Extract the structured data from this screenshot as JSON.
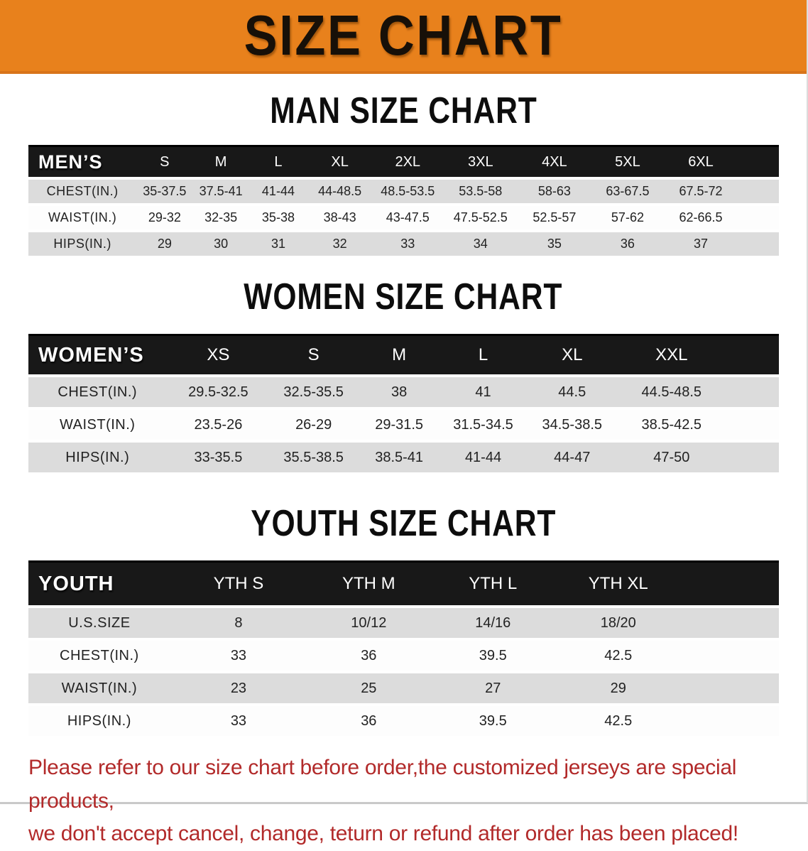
{
  "banner": {
    "title": "SIZE CHART"
  },
  "colors": {
    "banner_bg": "#E8811C",
    "banner_text": "#171008",
    "header_bar_bg": "#181818",
    "header_bar_text": "#FFFFFF",
    "row_alt_bg": "#DCDCDC",
    "disclaimer_red": "#B22A2A"
  },
  "sections": [
    {
      "heading": "MAN SIZE CHART",
      "table": {
        "label": "MEN’S",
        "columns": [
          "S",
          "M",
          "L",
          "XL",
          "2XL",
          "3XL",
          "4XL",
          "5XL",
          "6XL"
        ],
        "rows": [
          {
            "label": "CHEST(IN.)",
            "values": [
              "35-37.5",
              "37.5-41",
              "41-44",
              "44-48.5",
              "48.5-53.5",
              "53.5-58",
              "58-63",
              "63-67.5",
              "67.5-72"
            ]
          },
          {
            "label": "WAIST(IN.)",
            "values": [
              "29-32",
              "32-35",
              "35-38",
              "38-43",
              "43-47.5",
              "47.5-52.5",
              "52.5-57",
              "57-62",
              "62-66.5"
            ]
          },
          {
            "label": "HIPS(IN.)",
            "values": [
              "29",
              "30",
              "31",
              "32",
              "33",
              "34",
              "35",
              "36",
              "37"
            ]
          }
        ]
      }
    },
    {
      "heading": "WOMEN SIZE CHART",
      "table": {
        "label": "WOMEN’S",
        "columns": [
          "XS",
          "S",
          "M",
          "L",
          "XL",
          "XXL"
        ],
        "rows": [
          {
            "label": "CHEST(IN.)",
            "values": [
              "29.5-32.5",
              "32.5-35.5",
              "38",
              "41",
              "44.5",
              "44.5-48.5"
            ]
          },
          {
            "label": "WAIST(IN.)",
            "values": [
              "23.5-26",
              "26-29",
              "29-31.5",
              "31.5-34.5",
              "34.5-38.5",
              "38.5-42.5"
            ]
          },
          {
            "label": "HIPS(IN.)",
            "values": [
              "33-35.5",
              "35.5-38.5",
              "38.5-41",
              "41-44",
              "44-47",
              "47-50"
            ]
          }
        ]
      }
    },
    {
      "heading": "YOUTH SIZE CHART",
      "table": {
        "label": "YOUTH",
        "columns": [
          "YTH S",
          "YTH M",
          "YTH L",
          "YTH XL"
        ],
        "rows": [
          {
            "label": "U.S.SIZE",
            "values": [
              "8",
              "10/12",
              "14/16",
              "18/20"
            ]
          },
          {
            "label": "CHEST(IN.)",
            "values": [
              "33",
              "36",
              "39.5",
              "42.5"
            ]
          },
          {
            "label": "WAIST(IN.)",
            "values": [
              "23",
              "25",
              "27",
              "29"
            ]
          },
          {
            "label": "HIPS(IN.)",
            "values": [
              "33",
              "36",
              "39.5",
              "42.5"
            ]
          }
        ]
      }
    }
  ],
  "disclaimer": {
    "line1": "Please refer to our size chart before order,the customized jerseys are special products,",
    "line2": "we don't accept cancel, change, teturn or refund after order has been placed!"
  }
}
